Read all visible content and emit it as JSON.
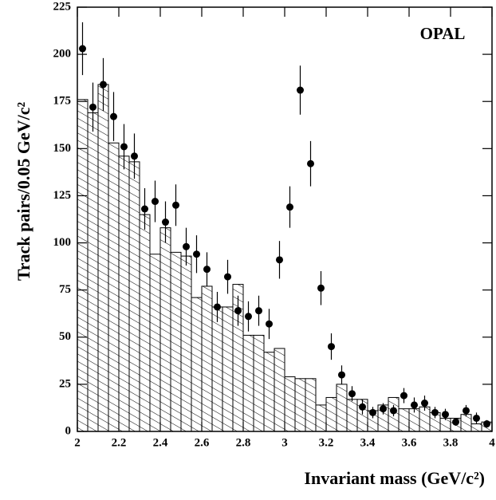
{
  "chart_data": {
    "type": "histogram",
    "annotation": "OPAL",
    "x_label": "Invariant mass (GeV/c²)",
    "y_label": "Track pairs/0.05 GeV/c²",
    "xlim": [
      2,
      4
    ],
    "ylim": [
      0,
      225
    ],
    "xticks": [
      2,
      2.2,
      2.4,
      2.6,
      2.8,
      3,
      3.2,
      3.4,
      3.6,
      3.8,
      4
    ],
    "yticks": [
      0,
      25,
      50,
      75,
      100,
      125,
      150,
      175,
      200,
      225
    ],
    "bins": [
      2,
      2.05,
      2.1,
      2.15,
      2.2,
      2.25,
      2.3,
      2.35,
      2.4,
      2.45,
      2.5,
      2.55,
      2.6,
      2.65,
      2.7,
      2.75,
      2.8,
      2.85,
      2.9,
      2.95,
      3,
      3.05,
      3.1,
      3.15,
      3.2,
      3.25,
      3.3,
      3.35,
      3.4,
      3.45,
      3.5,
      3.55,
      3.6,
      3.65,
      3.7,
      3.75,
      3.8,
      3.85,
      3.9,
      3.95,
      4
    ],
    "values": [
      176,
      169,
      184,
      153,
      146,
      143,
      115,
      94,
      108,
      95,
      93,
      71,
      77,
      66,
      66,
      78,
      51,
      51,
      42,
      44,
      29,
      28,
      28,
      14,
      18,
      25,
      17,
      17,
      11,
      14,
      18,
      12,
      12,
      13,
      10,
      7,
      7,
      9,
      4,
      5
    ],
    "color": "#000000",
    "points": {
      "x": [
        2.025,
        2.075,
        2.125,
        2.175,
        2.225,
        2.275,
        2.325,
        2.375,
        2.425,
        2.475,
        2.525,
        2.575,
        2.625,
        2.675,
        2.725,
        2.775,
        2.825,
        2.875,
        2.925,
        2.975,
        3.025,
        3.075,
        3.125,
        3.175,
        3.225,
        3.275,
        3.325,
        3.375,
        3.425,
        3.475,
        3.525,
        3.575,
        3.625,
        3.675,
        3.725,
        3.775,
        3.825,
        3.875,
        3.925,
        3.975
      ],
      "values": [
        203,
        172,
        184,
        167,
        151,
        146,
        118,
        122,
        111,
        120,
        98,
        94,
        86,
        66,
        82,
        64,
        61,
        64,
        57,
        91,
        119,
        181,
        142,
        76,
        45,
        30,
        20,
        13,
        10,
        12,
        11,
        19,
        14,
        15,
        10,
        9,
        5,
        11,
        7,
        4
      ],
      "errors": [
        14,
        13,
        14,
        13,
        12,
        12,
        11,
        11,
        11,
        11,
        10,
        10,
        9,
        8,
        9,
        8,
        8,
        8,
        8,
        10,
        11,
        13,
        12,
        9,
        7,
        5,
        4,
        4,
        3,
        3,
        3,
        4,
        4,
        4,
        3,
        3,
        2,
        3,
        3,
        2
      ],
      "color": "#000000"
    }
  }
}
